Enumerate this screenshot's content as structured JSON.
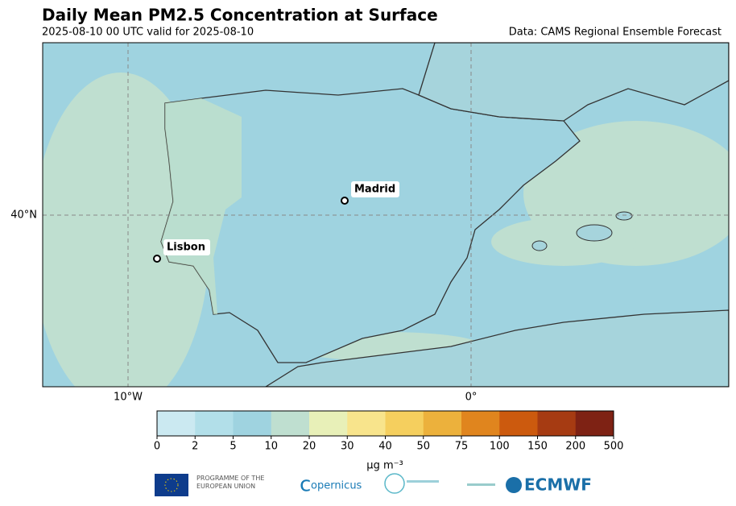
{
  "header": {
    "title": "Daily Mean PM2.5 Concentration at Surface",
    "subtitle": "2025-08-10 00 UTC valid for 2025-08-10",
    "source": "Data: CAMS Regional Ensemble Forecast"
  },
  "map": {
    "lat_labels": [
      "40°N"
    ],
    "lon_labels": [
      "10°W",
      "0°"
    ],
    "cities": [
      {
        "label": "Madrid"
      },
      {
        "label": "Lisbon"
      }
    ]
  },
  "colorbar": {
    "ticks": [
      0,
      2,
      5,
      10,
      20,
      30,
      40,
      50,
      75,
      100,
      150,
      200,
      500
    ],
    "colors": [
      "#cbe9f1",
      "#b2dfe9",
      "#9fd3e0",
      "#bfdfd0",
      "#e8f0b8",
      "#f8e48c",
      "#f5cf5e",
      "#ecb13c",
      "#e0851e",
      "#cc5a0e",
      "#a63b12",
      "#7e2214"
    ],
    "label": "μg m⁻³"
  },
  "footer": {
    "eu": "PROGRAMME OF THE EUROPEAN UNION",
    "copernicus": "opernicus",
    "ecmwf": "ECMWF"
  }
}
